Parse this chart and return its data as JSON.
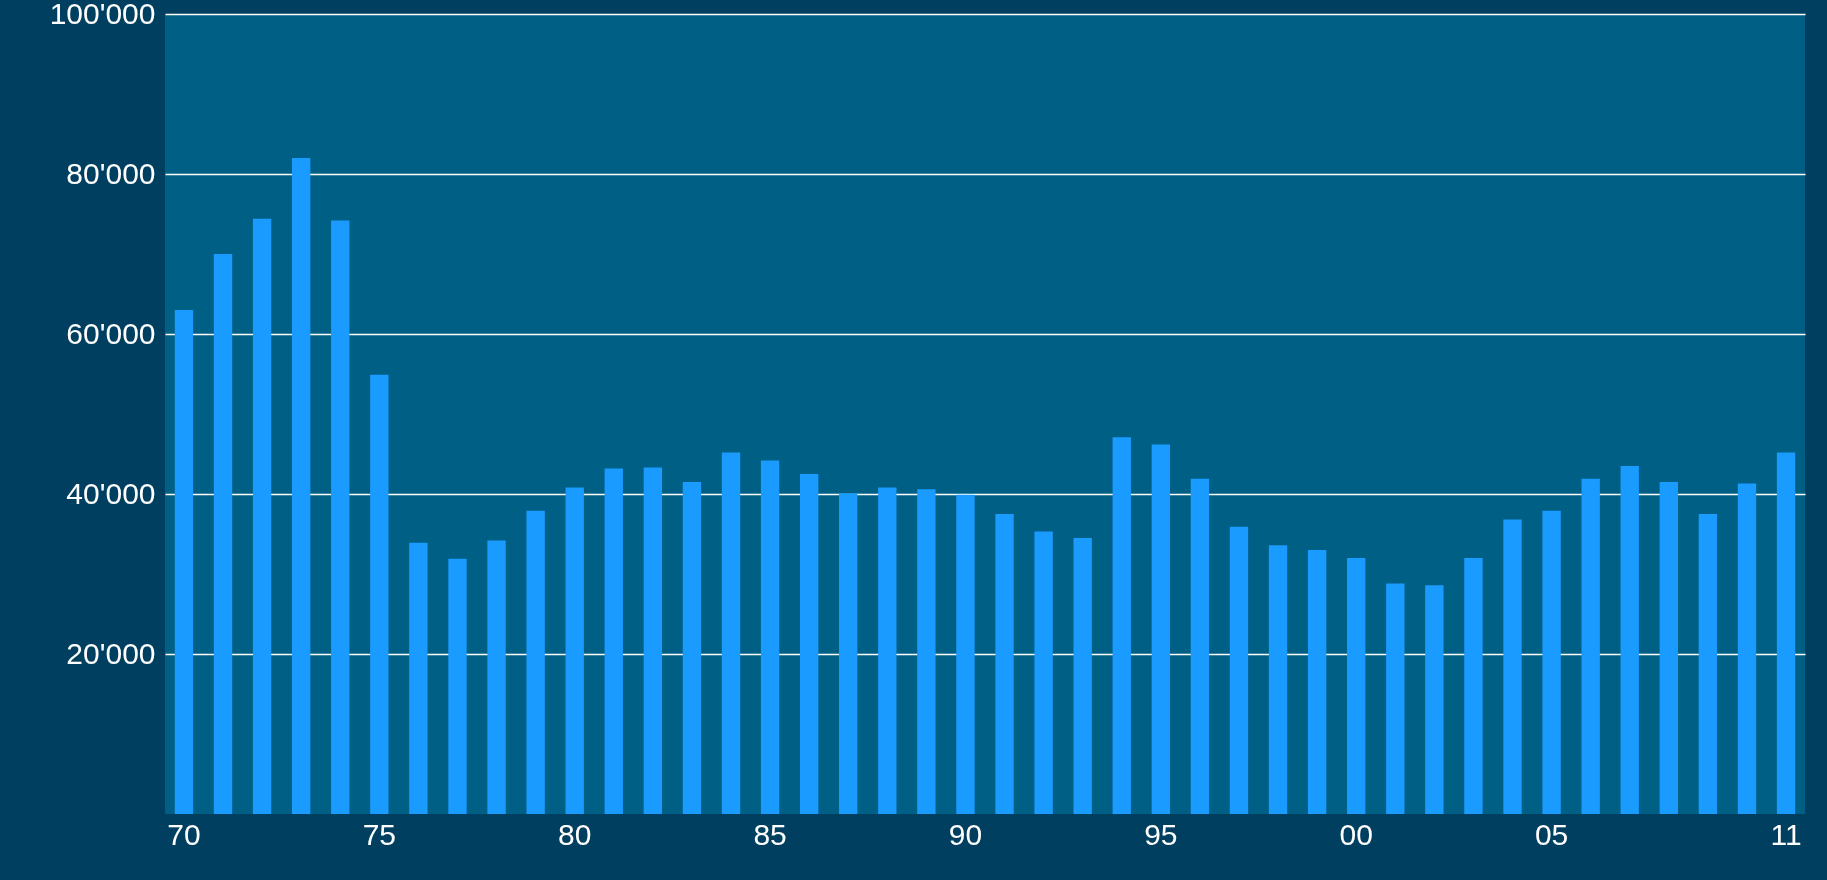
{
  "chart_data": {
    "type": "bar",
    "categories": [
      "70",
      null,
      null,
      null,
      null,
      "75",
      null,
      null,
      null,
      null,
      "80",
      null,
      null,
      null,
      null,
      "85",
      null,
      null,
      null,
      null,
      "90",
      null,
      null,
      null,
      null,
      "95",
      null,
      null,
      null,
      null,
      "00",
      null,
      null,
      null,
      null,
      "05",
      null,
      null,
      null,
      null,
      null,
      "11"
    ],
    "values": [
      63000,
      70000,
      74400,
      82000,
      74200,
      54900,
      33900,
      31900,
      34200,
      37900,
      40800,
      43200,
      43300,
      41500,
      45200,
      44200,
      42500,
      40100,
      40800,
      40600,
      39900,
      37500,
      35300,
      34500,
      47100,
      46200,
      41900,
      35900,
      33600,
      33000,
      32000,
      28800,
      28600,
      32000,
      36800,
      37900,
      41900,
      43500,
      41500,
      37500,
      41300,
      45200
    ],
    "color": "#1a9bff",
    "ylim": [
      0,
      100000
    ],
    "yticks": [
      {
        "value": 20000,
        "label": "20'000"
      },
      {
        "value": 40000,
        "label": "40'000"
      },
      {
        "value": 60000,
        "label": "60'000"
      },
      {
        "value": 80000,
        "label": "80'000"
      },
      {
        "value": 100000,
        "label": "100'000"
      }
    ],
    "grid": "y"
  }
}
